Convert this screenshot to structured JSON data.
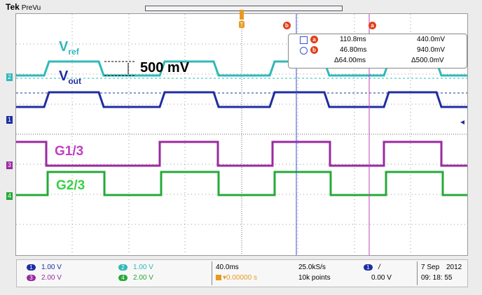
{
  "header": {
    "brand": "Tek",
    "mode": "PreVu"
  },
  "labels": {
    "vref_main": "V",
    "vref_sub": "ref",
    "vout_main": "V",
    "vout_sub": "out",
    "step": "500 mV",
    "g1": "G1/3",
    "g2": "G2/3"
  },
  "channel_tags": {
    "ch2": "2",
    "ch1": "1",
    "ch3": "3",
    "ch4": "4"
  },
  "cursors": {
    "a": "a",
    "b": "b"
  },
  "cursor_box": {
    "a_time": "110.8ms",
    "a_volt": "440.0mV",
    "b_time": "46.80ms",
    "b_volt": "940.0mV",
    "d_time": "Δ64.00ms",
    "d_volt": "Δ500.0mV"
  },
  "readout": {
    "ch1_num": "1",
    "ch1": "1.00 V",
    "ch2_num": "2",
    "ch2": "1.00 V",
    "ch3_num": "3",
    "ch3": "2.00 V",
    "ch4_num": "4",
    "ch4": "2.00 V",
    "timebase": "40.0ms",
    "trigpos": "▾0.00000 s",
    "rate": "25.0kS/s",
    "points": "10k points",
    "trig_num": "1",
    "trig_slope": "/",
    "trig_level": "0.00 V",
    "date": "7 Sep",
    "year": "2012",
    "time": "09: 18: 55"
  },
  "colors": {
    "ch1": "#1e2ea0",
    "ch2": "#2fb8b8",
    "ch3": "#9a2aa0",
    "ch4": "#27a83a",
    "cursor_a": "#c040c0",
    "cursor_b": "#3a50d0",
    "marker": "#e0401a"
  },
  "icons": [
    "trigger-marker-icon",
    "cursor-a-marker-icon",
    "cursor-b-marker-icon",
    "square-icon",
    "circle-icon",
    "trigger-slope-icon"
  ]
}
